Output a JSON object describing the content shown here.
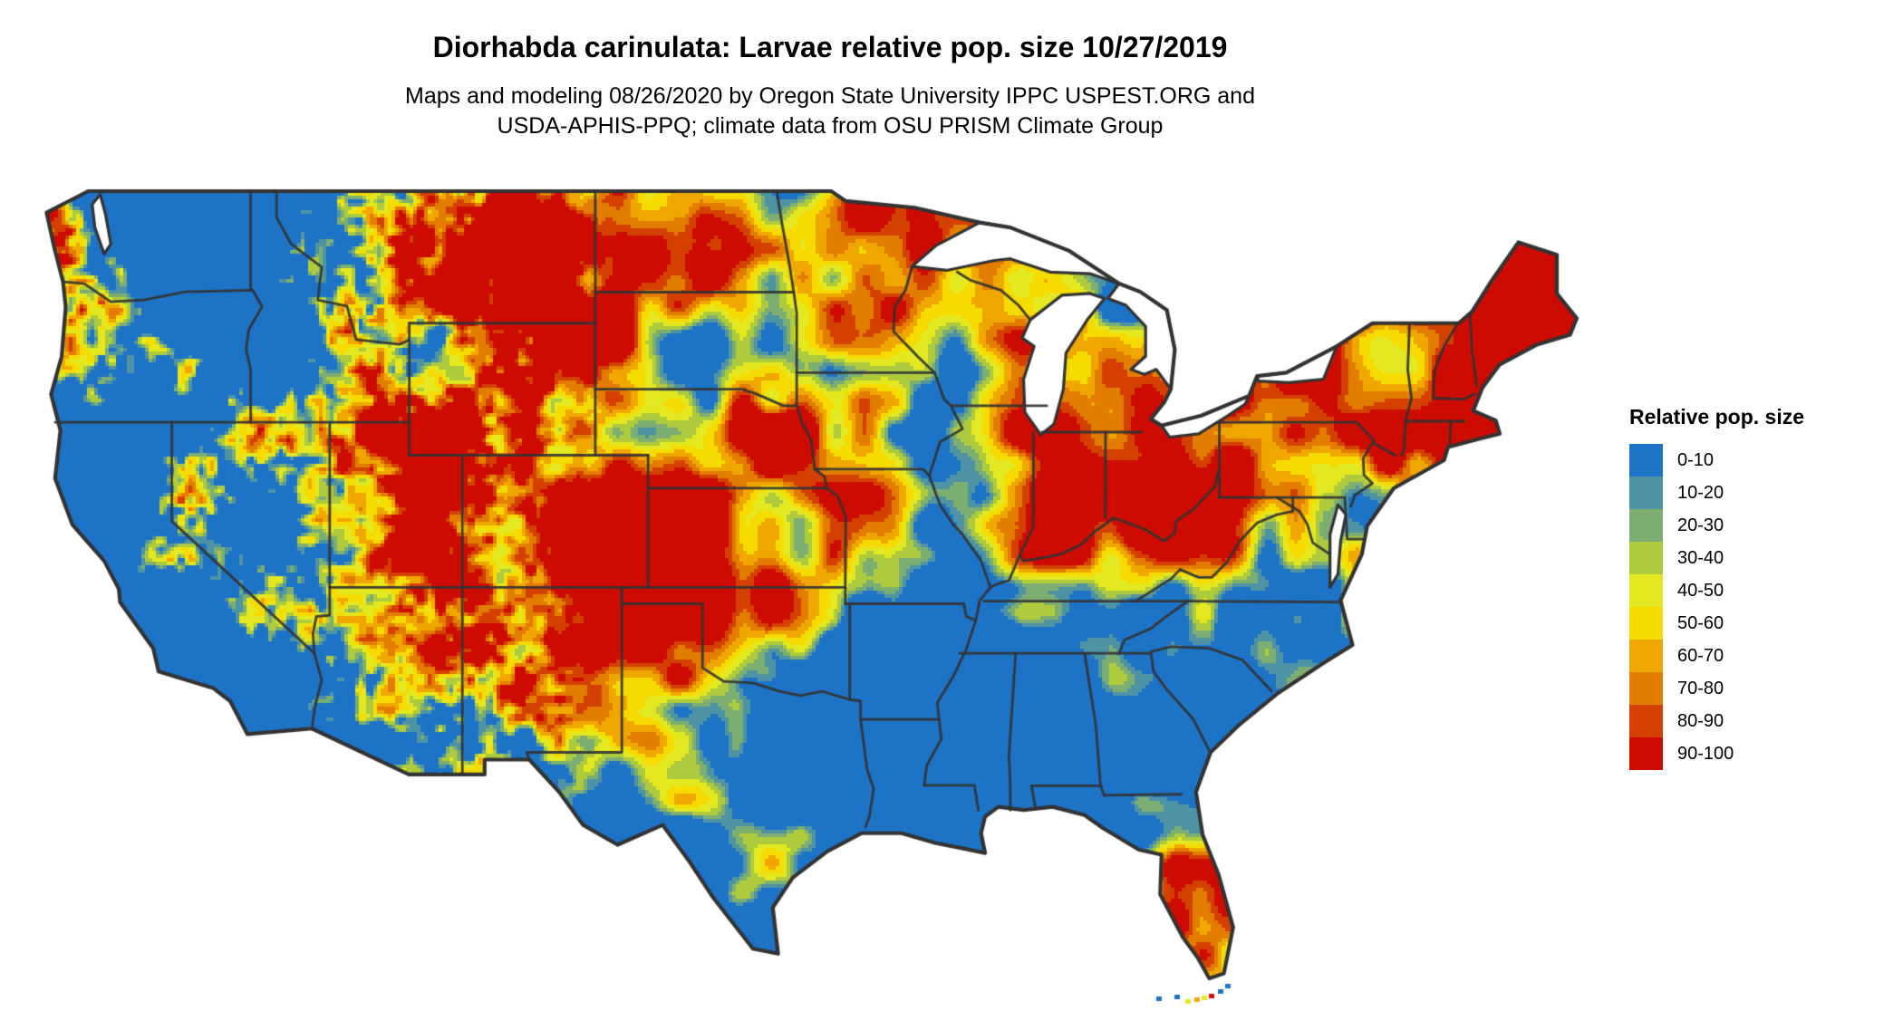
{
  "header": {
    "title": "Diorhabda carinulata: Larvae relative pop. size 10/27/2019",
    "subtitle_line1": "Maps and modeling 08/26/2020 by Oregon State University IPPC USPEST.ORG and",
    "subtitle_line2": "USDA-APHIS-PPQ; climate data from OSU PRISM Climate Group"
  },
  "legend": {
    "title": "Relative pop. size",
    "entries": [
      {
        "label": "0-10",
        "color": "#1D73C6"
      },
      {
        "label": "10-20",
        "color": "#4E93A3"
      },
      {
        "label": "20-30",
        "color": "#7CAE72"
      },
      {
        "label": "30-40",
        "color": "#AECB3E"
      },
      {
        "label": "40-50",
        "color": "#E3E821"
      },
      {
        "label": "50-60",
        "color": "#F6DB00"
      },
      {
        "label": "60-70",
        "color": "#F0A800"
      },
      {
        "label": "70-80",
        "color": "#E37D00"
      },
      {
        "label": "80-90",
        "color": "#D44000"
      },
      {
        "label": "90-100",
        "color": "#CE0B00"
      }
    ]
  },
  "map": {
    "boundary_color": "#333333",
    "water_color": "#FFFFFF"
  }
}
